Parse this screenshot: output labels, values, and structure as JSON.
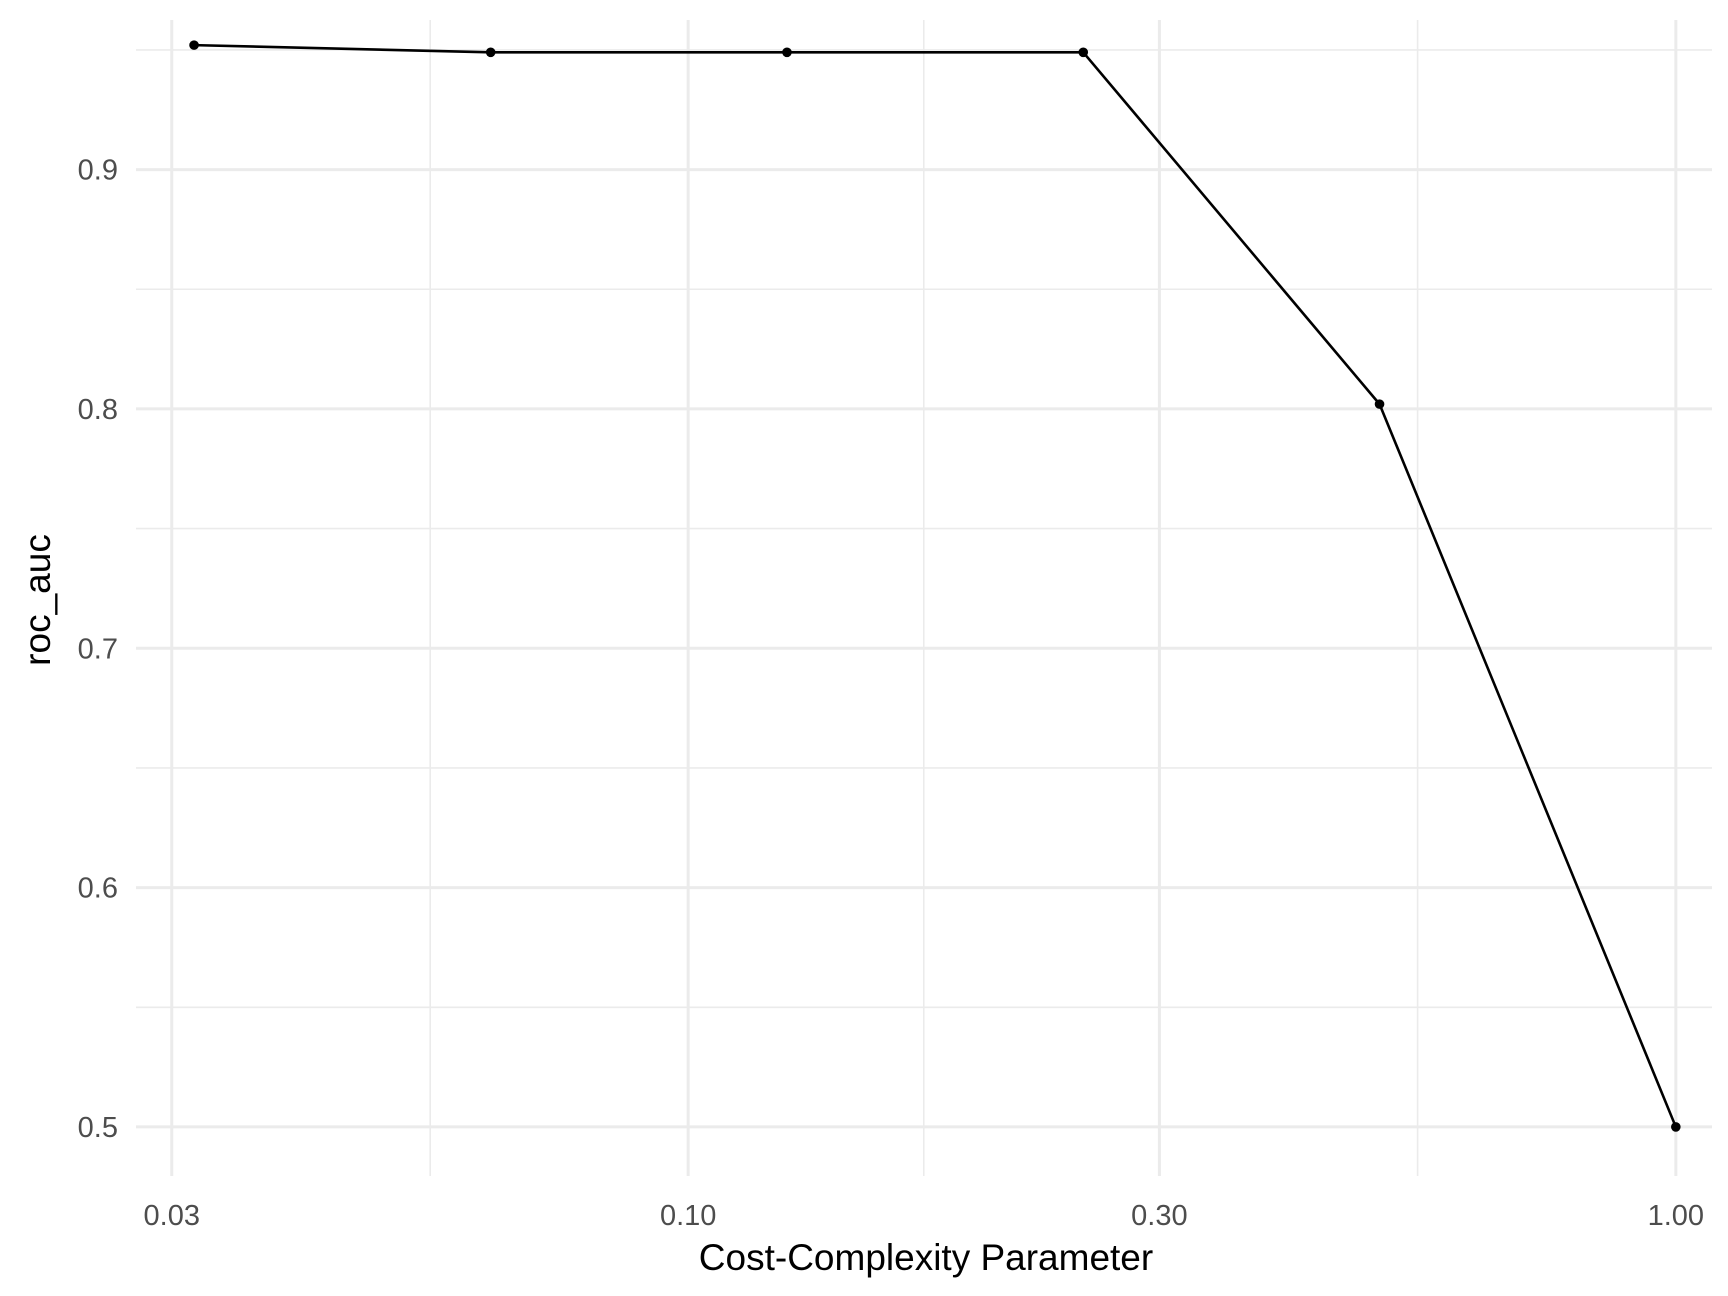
{
  "chart_data": {
    "type": "line",
    "title": "",
    "xlabel": "Cost-Complexity Parameter",
    "ylabel": "roc_auc",
    "x_scale": "log10",
    "xlim": [
      0.0276,
      1.088
    ],
    "ylim": [
      0.4795,
      0.9625
    ],
    "x_ticks": [
      {
        "value": 0.03,
        "label": "0.03"
      },
      {
        "value": 0.1,
        "label": "0.10"
      },
      {
        "value": 0.3,
        "label": "0.30"
      },
      {
        "value": 1.0,
        "label": "1.00"
      }
    ],
    "x_minor_ticks": [
      0.0548,
      0.1732,
      0.5477
    ],
    "y_ticks": [
      {
        "value": 0.5,
        "label": "0.5"
      },
      {
        "value": 0.6,
        "label": "0.6"
      },
      {
        "value": 0.7,
        "label": "0.7"
      },
      {
        "value": 0.8,
        "label": "0.8"
      },
      {
        "value": 0.9,
        "label": "0.9"
      }
    ],
    "y_minor_ticks": [
      0.55,
      0.65,
      0.75,
      0.85,
      0.95
    ],
    "grid": true,
    "legend": "none",
    "series": [
      {
        "x": [
          0.0316,
          0.0631,
          0.1259,
          0.2512,
          0.5012,
          1.0
        ],
        "y": [
          0.952,
          0.949,
          0.949,
          0.949,
          0.802,
          0.5
        ]
      }
    ],
    "colors": {
      "line": "#000000",
      "point": "#000000",
      "grid_major": "#ebebeb",
      "grid_minor": "#ebebeb",
      "tick_text": "#4d4d4d"
    }
  }
}
